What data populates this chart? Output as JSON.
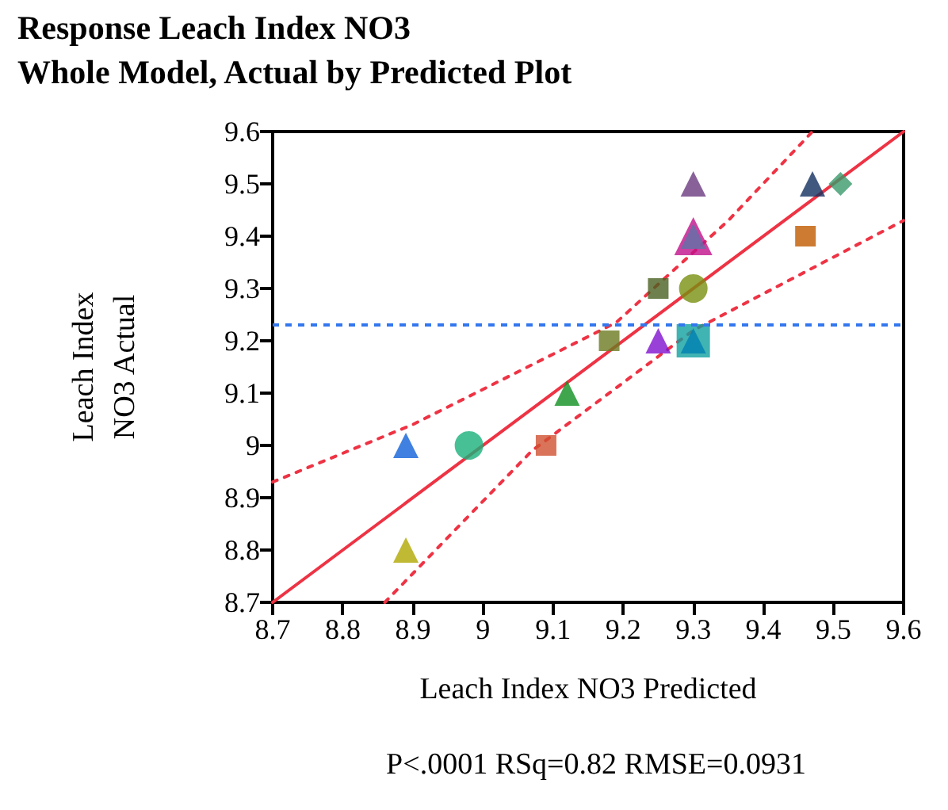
{
  "chart_data": {
    "type": "scatter",
    "title": "Response Leach Index NO3",
    "subtitle": "Whole Model, Actual by Predicted Plot",
    "xlabel": "Leach Index NO3 Predicted",
    "ylabel": "Leach Index\nNO3 Actual",
    "annotations": [
      "P<.0001 RSq=0.82 RMSE=0.0931"
    ],
    "xlim": [
      8.7,
      9.6
    ],
    "xticks": [
      8.7,
      8.8,
      8.9,
      9,
      9.1,
      9.2,
      9.3,
      9.4,
      9.5,
      9.6
    ],
    "ylim": [
      8.7,
      9.6
    ],
    "yticks": [
      8.7,
      8.8,
      8.9,
      9,
      9.1,
      9.2,
      9.3,
      9.4,
      9.5,
      9.6
    ],
    "grid": false,
    "ref_lines": [
      {
        "axis": "y",
        "value": 9.23,
        "label": null,
        "color": "#3377ee",
        "line_style": "dashed"
      }
    ],
    "series": [
      {
        "type": "line",
        "x": [
          8.7,
          9.6
        ],
        "values": [
          8.7,
          9.6
        ],
        "color": "#ee3344",
        "line_style": "solid",
        "marker": "none"
      },
      {
        "type": "line",
        "x": [
          8.7,
          8.9,
          9.19,
          9.35,
          9.47
        ],
        "values": [
          8.93,
          9.04,
          9.235,
          9.43,
          9.6
        ],
        "color": "#ee3344",
        "line_style": "dotted",
        "marker": "none"
      },
      {
        "type": "line",
        "x": [
          8.86,
          9.07,
          9.3,
          9.6
        ],
        "values": [
          8.7,
          8.99,
          9.22,
          9.43
        ],
        "color": "#ee3344",
        "line_style": "dotted",
        "marker": "none"
      },
      {
        "x": [
          8.89
        ],
        "values": [
          9.0
        ],
        "color": "#1060d8",
        "marker": "triangle"
      },
      {
        "x": [
          8.98
        ],
        "values": [
          9.0
        ],
        "color": "#1ab07a",
        "marker": "circle"
      },
      {
        "x": [
          9.09
        ],
        "values": [
          9.0
        ],
        "color": "#d05030",
        "marker": "square"
      },
      {
        "x": [
          8.89
        ],
        "values": [
          8.8
        ],
        "color": "#b0a800",
        "marker": "triangle"
      },
      {
        "x": [
          9.12
        ],
        "values": [
          9.1
        ],
        "color": "#109020",
        "marker": "triangle"
      },
      {
        "x": [
          9.18
        ],
        "values": [
          9.2
        ],
        "color": "#6b7a20",
        "marker": "square"
      },
      {
        "x": [
          9.25
        ],
        "values": [
          9.2
        ],
        "color": "#8010d0",
        "marker": "triangle"
      },
      {
        "x": [
          9.3
        ],
        "values": [
          9.2
        ],
        "color": "#10a0a0",
        "marker": "square"
      },
      {
        "x": [
          9.3
        ],
        "values": [
          9.2
        ],
        "color": "#0080b0",
        "marker": "triangle"
      },
      {
        "x": [
          9.25
        ],
        "values": [
          9.3
        ],
        "color": "#4a6020",
        "marker": "square"
      },
      {
        "x": [
          9.3
        ],
        "values": [
          9.3
        ],
        "color": "#789010",
        "marker": "circle"
      },
      {
        "x": [
          9.3
        ],
        "values": [
          9.4
        ],
        "color": "#c0108a",
        "marker": "triangle"
      },
      {
        "x": [
          9.3
        ],
        "values": [
          9.4
        ],
        "color": "#6070a8",
        "marker": "triangle"
      },
      {
        "x": [
          9.3
        ],
        "values": [
          9.5
        ],
        "color": "#6a3a80",
        "marker": "triangle"
      },
      {
        "x": [
          9.47
        ],
        "values": [
          9.5
        ],
        "color": "#13305f",
        "marker": "triangle"
      },
      {
        "x": [
          9.51
        ],
        "values": [
          9.5
        ],
        "color": "#3a9a6a",
        "marker": "diamond"
      },
      {
        "x": [
          9.46
        ],
        "values": [
          9.4
        ],
        "color": "#c05a00",
        "marker": "square"
      }
    ]
  }
}
